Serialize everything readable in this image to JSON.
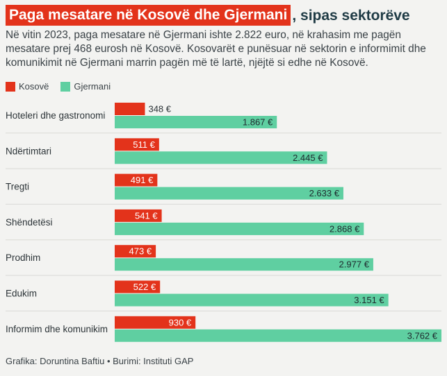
{
  "header": {
    "title_highlight": "Paga mesatare në Kosovë dhe Gjermani",
    "title_rest": ", sipas sektorëve",
    "subtitle": "Në vitin 2023, paga mesatare në Gjermani ishte 2.822 euro, në krahasim me pagën mesatare prej 468 eurosh në Kosovë. Kosovarët e punësuar në sektorin e informimit dhe komunikimit në Gjermani marrin pagën më të lartë, njëjtë si edhe në Kosovë."
  },
  "footer": {
    "credit": "Grafika: Doruntina Baftiu • Burimi: Instituti GAP"
  },
  "colors": {
    "kosovo": "#e3331b",
    "germany": "#5fcfa1",
    "title_bg": "#e3331b"
  },
  "chart_data": {
    "type": "bar",
    "orientation": "horizontal",
    "categories": [
      "Hoteleri dhe gastronomi",
      "Ndërtimtari",
      "Tregti",
      "Shëndetësi",
      "Prodhim",
      "Edukim",
      "Informim dhe komunikim"
    ],
    "series": [
      {
        "name": "Kosovë",
        "color": "#e3331b",
        "values": [
          348,
          511,
          491,
          541,
          473,
          522,
          930
        ],
        "labels": [
          "348 €",
          "511 €",
          "491 €",
          "541 €",
          "473 €",
          "522 €",
          "930 €"
        ]
      },
      {
        "name": "Gjermani",
        "color": "#5fcfa1",
        "values": [
          1867,
          2445,
          2633,
          2868,
          2977,
          3151,
          3762
        ],
        "labels": [
          "1.867 €",
          "2.445 €",
          "2.633 €",
          "2.868 €",
          "2.977 €",
          "3.151 €",
          "3.762 €"
        ]
      }
    ],
    "legend_position": "top-left",
    "grid": false
  }
}
